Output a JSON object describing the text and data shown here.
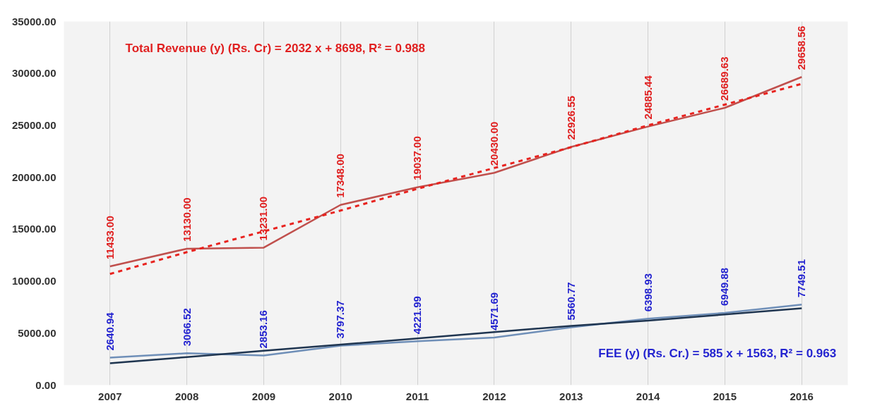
{
  "chart_data": {
    "type": "line",
    "categories": [
      "2007",
      "2008",
      "2009",
      "2010",
      "2011",
      "2012",
      "2013",
      "2014",
      "2015",
      "2016"
    ],
    "ylim": [
      0,
      35000
    ],
    "yticks": [
      {
        "value": 0,
        "label": "0.00"
      },
      {
        "value": 5000,
        "label": "5000.00"
      },
      {
        "value": 10000,
        "label": "10000.00"
      },
      {
        "value": 15000,
        "label": "15000.00"
      },
      {
        "value": 20000,
        "label": "20000.00"
      },
      {
        "value": 25000,
        "label": "25000.00"
      },
      {
        "value": 30000,
        "label": "30000.00"
      },
      {
        "value": 35000,
        "label": "35000.00"
      }
    ],
    "grid": "x",
    "marker": "none",
    "series": [
      {
        "color": "#c0504d",
        "line_style": "solid",
        "values": [
          11433,
          13130,
          13231,
          17348,
          19037,
          20430,
          22926.55,
          24885.44,
          26689.63,
          29658.56
        ],
        "value_labels": [
          "11433.00",
          "13130.00",
          "13231.00",
          "17348.00",
          "19037.00",
          "20430.00",
          "22926.55",
          "24885.44",
          "26689.63",
          "29658.56"
        ]
      },
      {
        "color": "#e8231f",
        "line_style": "dashed",
        "values": [
          10700,
          12800,
          14800,
          16800,
          18900,
          20900,
          22900,
          25000,
          27000,
          29000
        ]
      },
      {
        "color": "#6f8fb8",
        "line_style": "solid",
        "values": [
          2640.94,
          3066.52,
          2853.16,
          3797.37,
          4221.99,
          4571.69,
          5560.77,
          6398.93,
          6949.88,
          7749.51
        ],
        "value_labels": [
          "2640.94",
          "3066.52",
          "2853.16",
          "3797.37",
          "4221.99",
          "4571.69",
          "5560.77",
          "6398.93",
          "6949.88",
          "7749.51"
        ]
      },
      {
        "color": "#1f3550",
        "line_style": "solid",
        "values": [
          2100,
          2700,
          3300,
          3900,
          4500,
          5100,
          5700,
          6200,
          6800,
          7400
        ]
      }
    ],
    "annotations": [
      "Total Revenue (y) (Rs. Cr) = 2032 x + 8698, R² = 0.988",
      "FEE (y) (Rs. Cr.) = 585 x + 1563, R² = 0.963"
    ]
  }
}
